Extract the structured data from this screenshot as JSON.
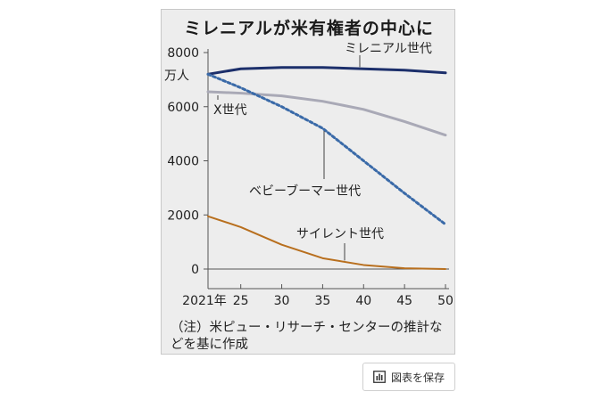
{
  "chart_data": {
    "type": "line",
    "title": "ミレニアルが米有権者の中心に",
    "ylabel": "万人",
    "x": [
      2021,
      2025,
      2030,
      2035,
      2040,
      2045,
      2050
    ],
    "x_tick_labels": [
      "2021年",
      "25",
      "30",
      "35",
      "40",
      "45",
      "50"
    ],
    "y_ticks": [
      0,
      2000,
      4000,
      6000,
      8000
    ],
    "xlim": [
      2021,
      2050
    ],
    "ylim": [
      0,
      8000
    ],
    "series": [
      {
        "name": "ミレニアル世代",
        "color": "#1c2f6b",
        "dash": false,
        "values": [
          7200,
          7400,
          7450,
          7450,
          7400,
          7350,
          7250
        ]
      },
      {
        "name": "X世代",
        "color": "#a9a9b6",
        "dash": false,
        "values": [
          6550,
          6500,
          6400,
          6200,
          5900,
          5450,
          4950
        ]
      },
      {
        "name": "ベビーブーマー世代",
        "color": "#3a6aa8",
        "dash": true,
        "values": [
          7200,
          6700,
          6000,
          5200,
          4000,
          2800,
          1650
        ]
      },
      {
        "name": "サイレント世代",
        "color": "#b86f1e",
        "dash": false,
        "values": [
          1950,
          1550,
          900,
          400,
          150,
          30,
          0
        ]
      }
    ],
    "note": "（注）米ピュー・リサーチ・センターの推計などを基に作成"
  },
  "save_button": {
    "label": "図表を保存",
    "icon": "bar-chart-icon"
  }
}
